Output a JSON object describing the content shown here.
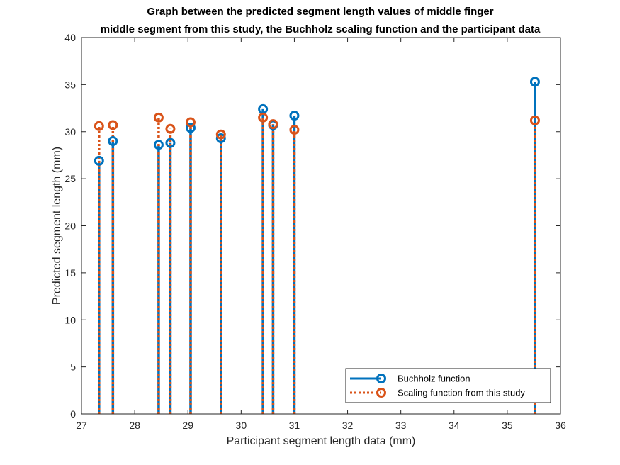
{
  "chart_data": {
    "type": "stem",
    "title": [
      "Graph between the predicted segment length values of middle finger",
      "middle segment from this study, the Buchholz scaling function and the participant data"
    ],
    "xlabel": "Participant segment length data (mm)",
    "ylabel": "Predicted segment length (mm)",
    "xlim": [
      27,
      36
    ],
    "ylim": [
      0,
      40
    ],
    "xticks": [
      "27",
      "28",
      "29",
      "30",
      "31",
      "32",
      "33",
      "34",
      "35",
      "36"
    ],
    "yticks": [
      "0",
      "5",
      "10",
      "15",
      "20",
      "25",
      "30",
      "35",
      "40"
    ],
    "grid": false,
    "legend_position": "bottom-right",
    "x": [
      27.33,
      27.59,
      28.45,
      28.67,
      29.05,
      29.62,
      30.41,
      30.6,
      31.0,
      35.52
    ],
    "series": [
      {
        "name": "Buchholz function",
        "color": "#0072BD",
        "line_style": "solid",
        "values": [
          26.9,
          29.0,
          28.6,
          28.8,
          30.4,
          29.3,
          32.4,
          30.7,
          31.7,
          35.3
        ]
      },
      {
        "name": "Scaling function from this study",
        "color": "#D95319",
        "line_style": "dotted",
        "values": [
          30.6,
          30.7,
          31.5,
          30.3,
          31.0,
          29.7,
          31.5,
          30.8,
          30.2,
          31.2
        ]
      }
    ]
  }
}
